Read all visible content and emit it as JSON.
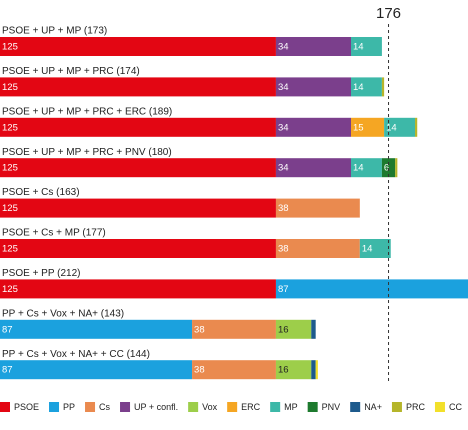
{
  "chart_data": {
    "type": "bar",
    "orientation": "horizontal",
    "stacked": true,
    "threshold": 176,
    "threshold_label": "176",
    "xlim": [
      0,
      212
    ],
    "parties": [
      {
        "key": "PSOE",
        "name": "PSOE",
        "color": "#e30613"
      },
      {
        "key": "PP",
        "name": "PP",
        "color": "#1ba1de"
      },
      {
        "key": "Cs",
        "name": "Cs",
        "color": "#ea8a4f"
      },
      {
        "key": "UP",
        "name": "UP + confl.",
        "color": "#7b3f8c"
      },
      {
        "key": "Vox",
        "name": "Vox",
        "color": "#9dce4a"
      },
      {
        "key": "ERC",
        "name": "ERC",
        "color": "#f5a623"
      },
      {
        "key": "MP",
        "name": "MP",
        "color": "#3db8a8"
      },
      {
        "key": "PNV",
        "name": "PNV",
        "color": "#1d7a2e"
      },
      {
        "key": "NA",
        "name": "NA+",
        "color": "#1d5a8c"
      },
      {
        "key": "PRC",
        "name": "PRC",
        "color": "#b5b52a"
      },
      {
        "key": "CC",
        "name": "CC",
        "color": "#f2e02a"
      }
    ],
    "rows": [
      {
        "label": "PSOE + UP + MP (173)",
        "segments": [
          {
            "party": "PSOE",
            "value": 125,
            "label": "125"
          },
          {
            "party": "UP",
            "value": 34,
            "label": "34"
          },
          {
            "party": "MP",
            "value": 14,
            "label": "14"
          }
        ]
      },
      {
        "label": "PSOE + UP + MP + PRC (174)",
        "segments": [
          {
            "party": "PSOE",
            "value": 125,
            "label": "125"
          },
          {
            "party": "UP",
            "value": 34,
            "label": "34"
          },
          {
            "party": "MP",
            "value": 14,
            "label": "14"
          },
          {
            "party": "PRC",
            "value": 1,
            "label": ""
          }
        ]
      },
      {
        "label": "PSOE + UP + MP + PRC + ERC (189)",
        "segments": [
          {
            "party": "PSOE",
            "value": 125,
            "label": "125"
          },
          {
            "party": "UP",
            "value": 34,
            "label": "34"
          },
          {
            "party": "ERC",
            "value": 15,
            "label": "15"
          },
          {
            "party": "MP",
            "value": 14,
            "label": "14"
          },
          {
            "party": "PRC",
            "value": 1,
            "label": ""
          }
        ]
      },
      {
        "label": "PSOE + UP + MP + PRC + PNV (180)",
        "segments": [
          {
            "party": "PSOE",
            "value": 125,
            "label": "125"
          },
          {
            "party": "UP",
            "value": 34,
            "label": "34"
          },
          {
            "party": "MP",
            "value": 14,
            "label": "14"
          },
          {
            "party": "PNV",
            "value": 6,
            "label": "6"
          },
          {
            "party": "PRC",
            "value": 1,
            "label": ""
          }
        ]
      },
      {
        "label": "PSOE + Cs (163)",
        "segments": [
          {
            "party": "PSOE",
            "value": 125,
            "label": "125"
          },
          {
            "party": "Cs",
            "value": 38,
            "label": "38"
          }
        ]
      },
      {
        "label": "PSOE + Cs + MP (177)",
        "segments": [
          {
            "party": "PSOE",
            "value": 125,
            "label": "125"
          },
          {
            "party": "Cs",
            "value": 38,
            "label": "38"
          },
          {
            "party": "MP",
            "value": 14,
            "label": "14"
          }
        ]
      },
      {
        "label": "PSOE + PP (212)",
        "segments": [
          {
            "party": "PSOE",
            "value": 125,
            "label": "125"
          },
          {
            "party": "PP",
            "value": 87,
            "label": "87"
          }
        ]
      },
      {
        "label": "PP + Cs + Vox + NA+ (143)",
        "segments": [
          {
            "party": "PP",
            "value": 87,
            "label": "87"
          },
          {
            "party": "Cs",
            "value": 38,
            "label": "38"
          },
          {
            "party": "Vox",
            "value": 16,
            "label": "16"
          },
          {
            "party": "NA",
            "value": 2,
            "label": ""
          }
        ]
      },
      {
        "label": "PP + Cs + Vox + NA+ + CC (144)",
        "segments": [
          {
            "party": "PP",
            "value": 87,
            "label": "87"
          },
          {
            "party": "Cs",
            "value": 38,
            "label": "38"
          },
          {
            "party": "Vox",
            "value": 16,
            "label": "16"
          },
          {
            "party": "NA",
            "value": 2,
            "label": ""
          },
          {
            "party": "CC",
            "value": 1,
            "label": ""
          }
        ]
      }
    ],
    "legend_position": "bottom"
  }
}
